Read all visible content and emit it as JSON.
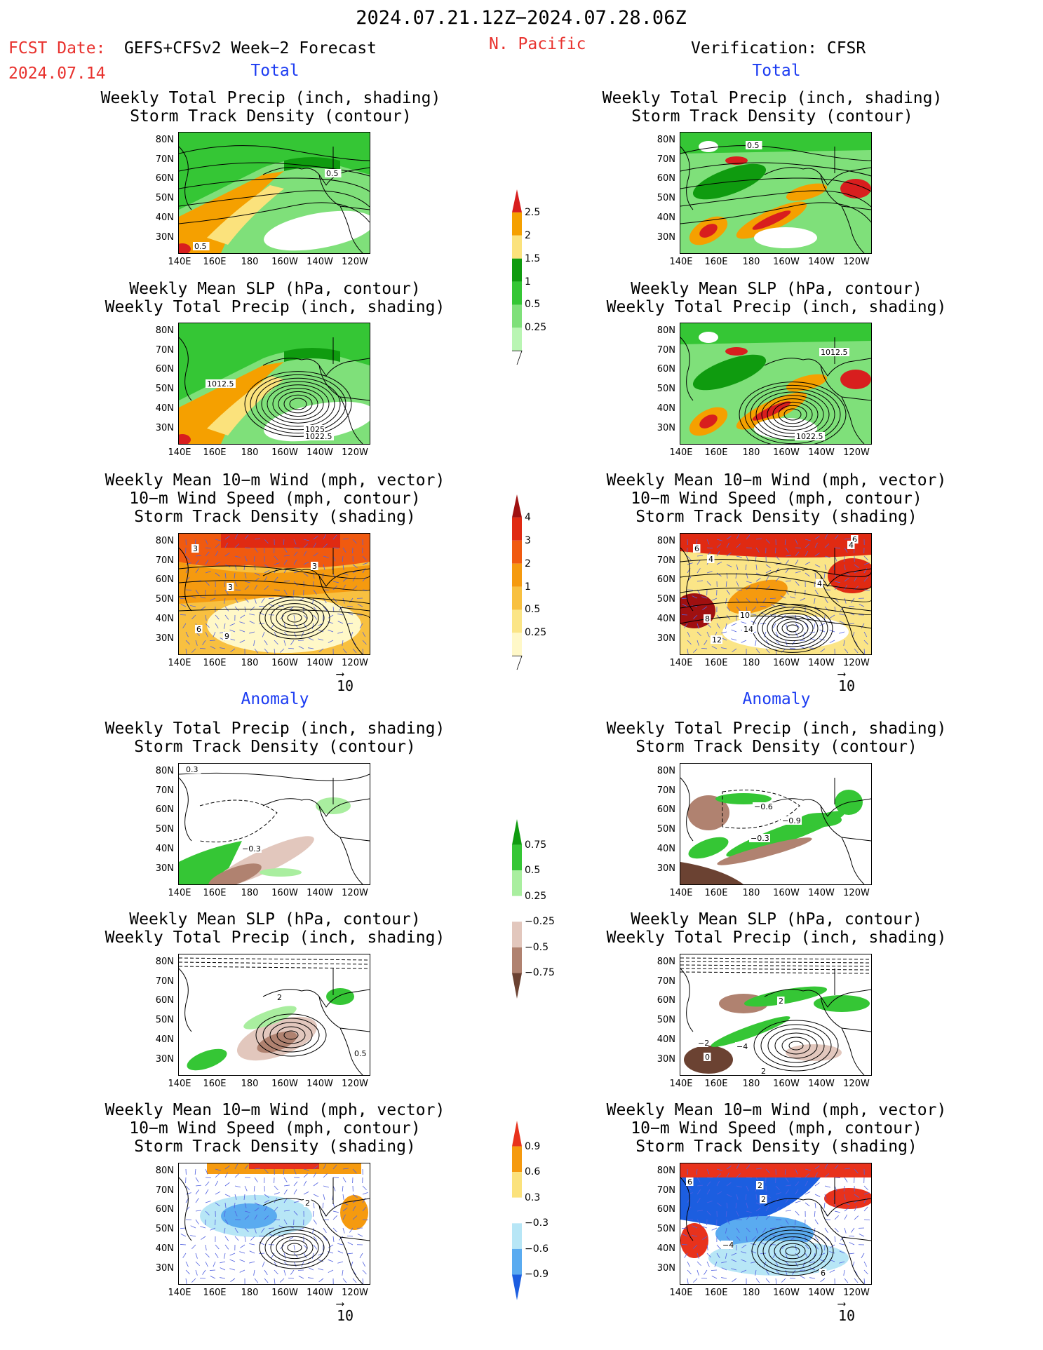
{
  "header": {
    "date_range": "2024.07.21.12Z−2024.07.28.06Z",
    "fcst_date_label": "FCST Date:",
    "forecast_name": "GEFS+CFSv2 Week−2 Forecast",
    "fcst_date": "2024.07.14",
    "region": "N. Pacific",
    "verification": "Verification: CFSR"
  },
  "sections": {
    "total": "Total",
    "anomaly": "Anomaly"
  },
  "panel_titles": {
    "precip_storm": [
      "Weekly Total Precip (inch, shading)",
      "Storm Track Density (contour)"
    ],
    "slp_precip": [
      "Weekly Mean SLP (hPa, contour)",
      "Weekly Total Precip (inch, shading)"
    ],
    "wind_storm": [
      "Weekly Mean 10−m Wind (mph, vector)",
      "10−m Wind Speed (mph, contour)",
      "Storm Track Density (shading)"
    ]
  },
  "axes": {
    "lat_ticks": [
      "80N",
      "70N",
      "60N",
      "50N",
      "40N",
      "30N"
    ],
    "lon_ticks": [
      "140E",
      "160E",
      "180",
      "160W",
      "140W",
      "120W"
    ]
  },
  "vector_ref": "10",
  "contour_labels": {
    "p1": [
      "0.5",
      "0.5"
    ],
    "p2": [
      "0.5"
    ],
    "p3": [
      "1012.5",
      "1025",
      "1022.5"
    ],
    "p4": [
      "1012.5",
      "1022.5"
    ],
    "p5": [
      "3",
      "3",
      "3",
      "6",
      "9"
    ],
    "p6": [
      "6",
      "6",
      "4",
      "4",
      "8",
      "10",
      "14",
      "12",
      "4"
    ],
    "p7": [
      "0.3",
      "−0.3"
    ],
    "p8": [
      "−0.6",
      "−0.9",
      "−0.3"
    ],
    "p9": [
      "2",
      "0.5"
    ],
    "p10": [
      "2",
      "−2",
      "0",
      "−4",
      "2"
    ],
    "p11": [
      "2"
    ],
    "p12": [
      "6",
      "2",
      "2",
      "−4",
      "6"
    ]
  },
  "colorbars": {
    "precip_total": {
      "labels": [
        "2.5",
        "2",
        "1.5",
        "1",
        "0.5",
        "0.25"
      ],
      "colors": [
        "#d81e1e",
        "#f5a000",
        "#fbe27c",
        "#0f9b0f",
        "#35c635",
        "#7fe07a",
        "#b9f5b3"
      ]
    },
    "storm_total": {
      "labels": [
        "4",
        "3",
        "2",
        "1",
        "0.5",
        "0.25"
      ],
      "colors": [
        "#a01010",
        "#e02a12",
        "#f05a10",
        "#f59a0f",
        "#f8c040",
        "#fbe587",
        "#fff8c8"
      ]
    },
    "precip_anom": {
      "labels": [
        "0.75",
        "0.5",
        "0.25",
        "−0.25",
        "−0.5",
        "−0.75"
      ],
      "colors": [
        "#0f9b0f",
        "#35c635",
        "#a9ee9f",
        "#ffffff",
        "#e2c7bd",
        "#b08270",
        "#6b4232"
      ]
    },
    "storm_anom": {
      "labels": [
        "0.9",
        "0.6",
        "0.3",
        "−0.3",
        "−0.6",
        "−0.9"
      ],
      "colors": [
        "#e8321c",
        "#f59a0f",
        "#fbe27c",
        "#ffffff",
        "#b7e6f6",
        "#5aabf0",
        "#1c5ee0"
      ]
    }
  },
  "chart_data": [
    {
      "type": "heatmap",
      "panel": "GEFS+CFSv2 Total: Weekly Total Precip / Storm Track Density",
      "xlabels": [
        "140E",
        "160E",
        "180",
        "160W",
        "140W",
        "120W"
      ],
      "ylabels": [
        "80N",
        "70N",
        "60N",
        "50N",
        "40N",
        "30N"
      ]
    },
    {
      "type": "heatmap",
      "panel": "CFSR Total: Weekly Total Precip / Storm Track Density",
      "xlabels": [
        "140E",
        "160E",
        "180",
        "160W",
        "140W",
        "120W"
      ],
      "ylabels": [
        "80N",
        "70N",
        "60N",
        "50N",
        "40N",
        "30N"
      ]
    },
    {
      "type": "heatmap",
      "panel": "GEFS+CFSv2 Total: Weekly Mean SLP / Weekly Total Precip",
      "xlabels": [
        "140E",
        "160E",
        "180",
        "160W",
        "140W",
        "120W"
      ],
      "ylabels": [
        "80N",
        "70N",
        "60N",
        "50N",
        "40N",
        "30N"
      ]
    },
    {
      "type": "heatmap",
      "panel": "CFSR Total: Weekly Mean SLP / Weekly Total Precip",
      "xlabels": [
        "140E",
        "160E",
        "180",
        "160W",
        "140W",
        "120W"
      ],
      "ylabels": [
        "80N",
        "70N",
        "60N",
        "50N",
        "40N",
        "30N"
      ]
    },
    {
      "type": "heatmap",
      "panel": "GEFS+CFSv2 Total: 10-m Wind / Storm Track Density",
      "xlabels": [
        "140E",
        "160E",
        "180",
        "160W",
        "140W",
        "120W"
      ],
      "ylabels": [
        "80N",
        "70N",
        "60N",
        "50N",
        "40N",
        "30N"
      ]
    },
    {
      "type": "heatmap",
      "panel": "CFSR Total: 10-m Wind / Storm Track Density",
      "xlabels": [
        "140E",
        "160E",
        "180",
        "160W",
        "140W",
        "120W"
      ],
      "ylabels": [
        "80N",
        "70N",
        "60N",
        "50N",
        "40N",
        "30N"
      ]
    },
    {
      "type": "heatmap",
      "panel": "GEFS+CFSv2 Anomaly: Weekly Total Precip / Storm Track Density",
      "xlabels": [
        "140E",
        "160E",
        "180",
        "160W",
        "140W",
        "120W"
      ],
      "ylabels": [
        "80N",
        "70N",
        "60N",
        "50N",
        "40N",
        "30N"
      ]
    },
    {
      "type": "heatmap",
      "panel": "CFSR Anomaly: Weekly Total Precip / Storm Track Density",
      "xlabels": [
        "140E",
        "160E",
        "180",
        "160W",
        "140W",
        "120W"
      ],
      "ylabels": [
        "80N",
        "70N",
        "60N",
        "50N",
        "40N",
        "30N"
      ]
    },
    {
      "type": "heatmap",
      "panel": "GEFS+CFSv2 Anomaly: Weekly Mean SLP / Weekly Total Precip",
      "xlabels": [
        "140E",
        "160E",
        "180",
        "160W",
        "140W",
        "120W"
      ],
      "ylabels": [
        "80N",
        "70N",
        "60N",
        "50N",
        "40N",
        "30N"
      ]
    },
    {
      "type": "heatmap",
      "panel": "CFSR Anomaly: Weekly Mean SLP / Weekly Total Precip",
      "xlabels": [
        "140E",
        "160E",
        "180",
        "160W",
        "140W",
        "120W"
      ],
      "ylabels": [
        "80N",
        "70N",
        "60N",
        "50N",
        "40N",
        "30N"
      ]
    },
    {
      "type": "heatmap",
      "panel": "GEFS+CFSv2 Anomaly: 10-m Wind / Storm Track Density",
      "xlabels": [
        "140E",
        "160E",
        "180",
        "160W",
        "140W",
        "120W"
      ],
      "ylabels": [
        "80N",
        "70N",
        "60N",
        "50N",
        "40N",
        "30N"
      ]
    },
    {
      "type": "heatmap",
      "panel": "CFSR Anomaly: 10-m Wind / Storm Track Density",
      "xlabels": [
        "140E",
        "160E",
        "180",
        "160W",
        "140W",
        "120W"
      ],
      "ylabels": [
        "80N",
        "70N",
        "60N",
        "50N",
        "40N",
        "30N"
      ]
    }
  ]
}
